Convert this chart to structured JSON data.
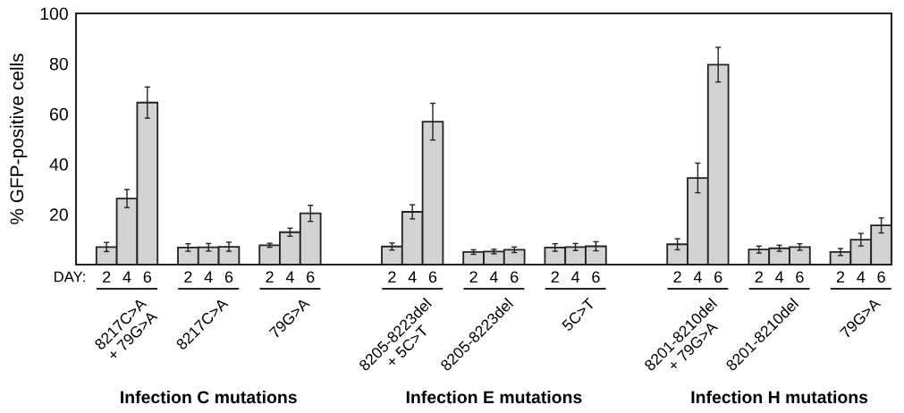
{
  "chart_data": {
    "type": "bar",
    "ylabel": "% GFP-positive cells",
    "categories": [
      null,
      "2",
      "4",
      "6",
      null,
      "2",
      "4",
      "6",
      null,
      "2",
      "4",
      "6",
      null,
      null,
      null,
      "2",
      "4",
      "6",
      null,
      "2",
      "4",
      "6",
      null,
      "2",
      "4",
      "6",
      null,
      null,
      null,
      "2",
      "4",
      "6",
      null,
      "2",
      "4",
      "6",
      null,
      "2",
      "4",
      "6"
    ],
    "values": [
      null,
      7.0,
      26.3,
      64.5,
      null,
      6.8,
      6.9,
      7.1,
      null,
      7.7,
      12.9,
      20.4,
      null,
      null,
      null,
      7.2,
      21.0,
      56.9,
      null,
      5.0,
      5.2,
      5.9,
      null,
      6.8,
      7.0,
      7.3,
      null,
      null,
      null,
      8.1,
      34.5,
      79.6,
      null,
      6.0,
      6.5,
      7.0,
      null,
      5.0,
      9.9,
      15.6
    ],
    "errors": [
      null,
      1.8,
      3.6,
      6.2,
      null,
      1.5,
      1.5,
      1.8,
      null,
      0.8,
      1.6,
      3.2,
      null,
      null,
      null,
      1.4,
      2.8,
      7.3,
      null,
      0.9,
      0.9,
      1.1,
      null,
      1.5,
      1.4,
      1.8,
      null,
      null,
      null,
      2.2,
      5.9,
      6.9,
      null,
      1.4,
      1.2,
      1.3,
      null,
      1.4,
      2.5,
      3.0
    ],
    "color": "#d3d3d3",
    "ylim": [
      0,
      100
    ],
    "yticks": [
      20,
      40,
      60,
      80,
      100
    ],
    "annotations": [
      "DAY:",
      "8217C>A\n+ 79G>A",
      "8217C>A",
      "79G>A",
      "8205-8223del\n+ 5C>T",
      "8205-8223del",
      "5C>T",
      "8201-8210del\n+ 79G>A",
      "8201-8210del",
      "79G>A",
      "Infection C mutations",
      "Infection E mutations",
      "Infection H mutations"
    ]
  }
}
